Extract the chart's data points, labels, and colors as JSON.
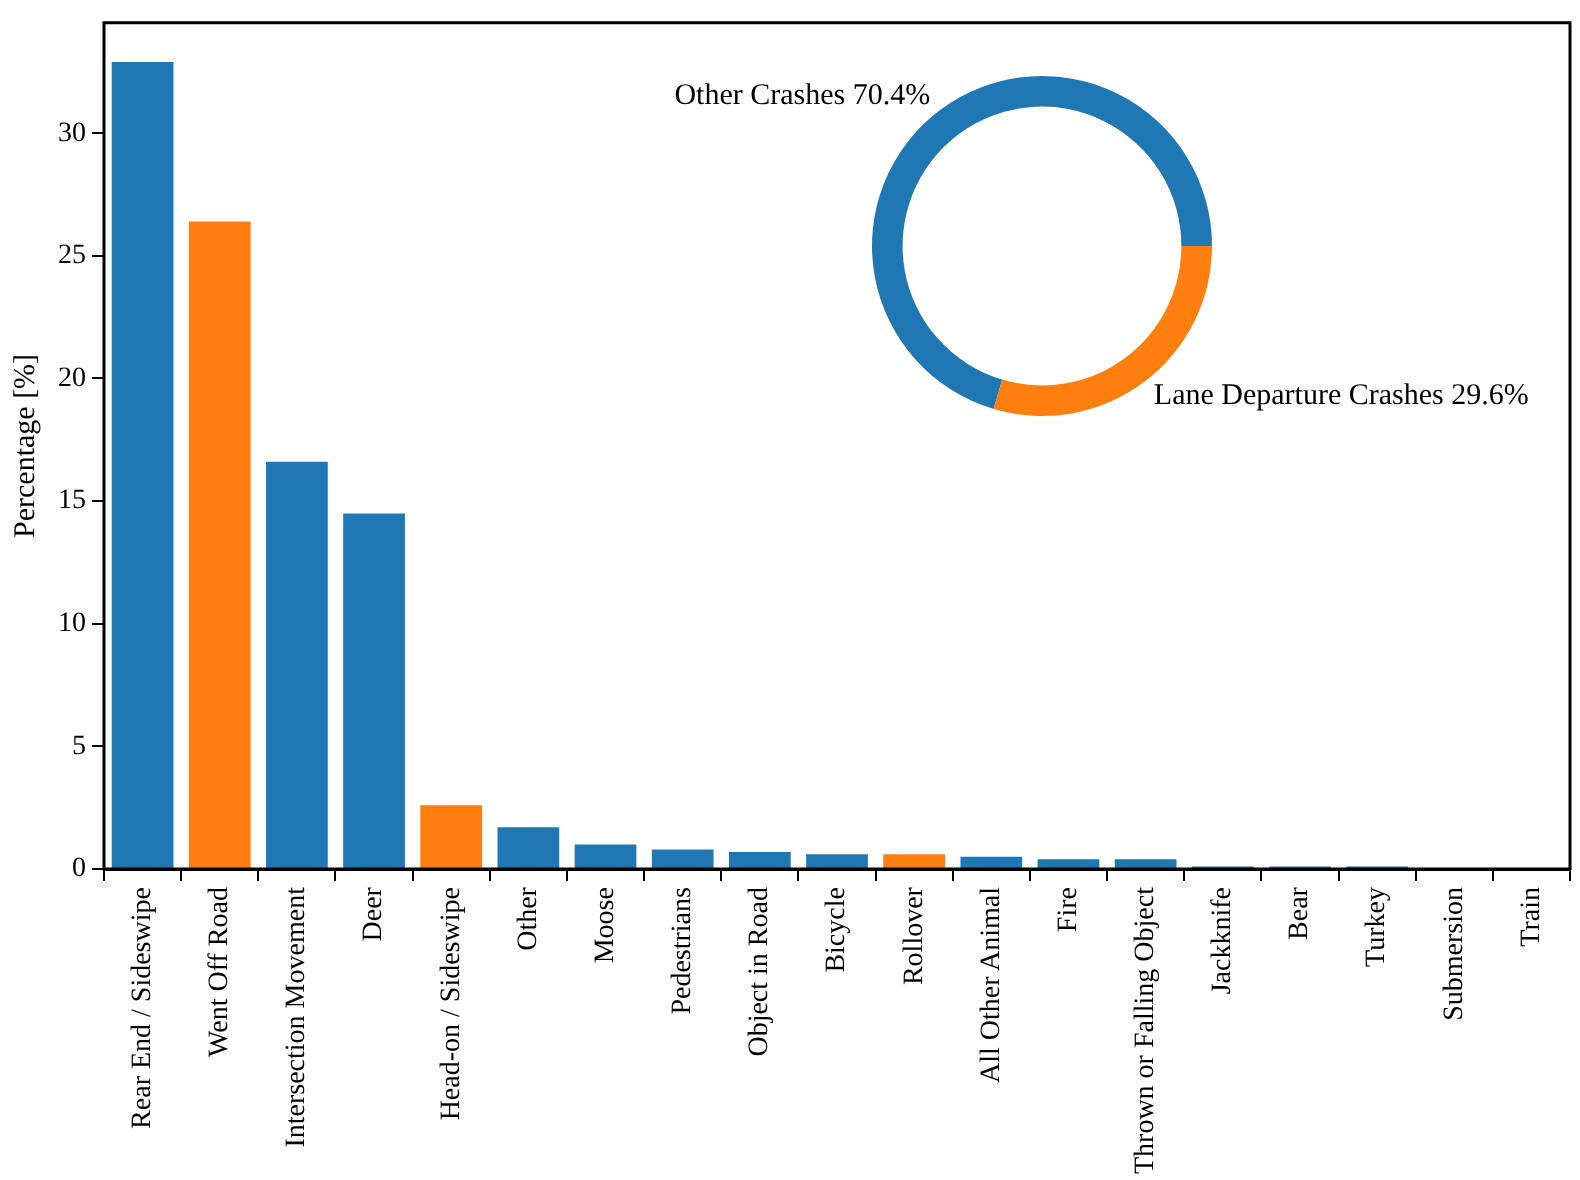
{
  "chart_data": [
    {
      "type": "bar",
      "ylabel": "Percentage [%]",
      "categories": [
        "Rear End / Sideswipe",
        "Went Off Road",
        "Intersection Movement",
        "Deer",
        "Head-on / Sideswipe",
        "Other",
        "Moose",
        "Pedestrians",
        "Object in Road",
        "Bicycle",
        "Rollover",
        "All Other Animal",
        "Fire",
        "Thrown or Falling Object",
        "Jackknife",
        "Bear",
        "Turkey",
        "Submersion",
        "Train"
      ],
      "values": [
        32.9,
        26.4,
        16.6,
        14.5,
        2.6,
        1.7,
        1.0,
        0.8,
        0.7,
        0.6,
        0.6,
        0.5,
        0.4,
        0.4,
        0.1,
        0.1,
        0.1,
        0,
        0
      ],
      "colors": [
        "#1f77b4",
        "#ff7f0e",
        "#1f77b4",
        "#1f77b4",
        "#ff7f0e",
        "#1f77b4",
        "#1f77b4",
        "#1f77b4",
        "#1f77b4",
        "#1f77b4",
        "#ff7f0e",
        "#1f77b4",
        "#1f77b4",
        "#1f77b4",
        "#1f77b4",
        "#1f77b4",
        "#1f77b4",
        "#1f77b4",
        "#1f77b4"
      ],
      "ylim": [
        0,
        34.5
      ],
      "yticks": [
        0,
        5,
        10,
        15,
        20,
        25,
        30
      ],
      "grid": false,
      "legend": false
    },
    {
      "type": "donut",
      "categories": [
        "Other Crashes",
        "Lane Departure Crashes"
      ],
      "values": [
        70.4,
        29.6
      ],
      "colors": [
        "#1f77b4",
        "#ff7f0e"
      ],
      "value_labels": [
        "70.4%",
        "29.6%"
      ]
    }
  ]
}
